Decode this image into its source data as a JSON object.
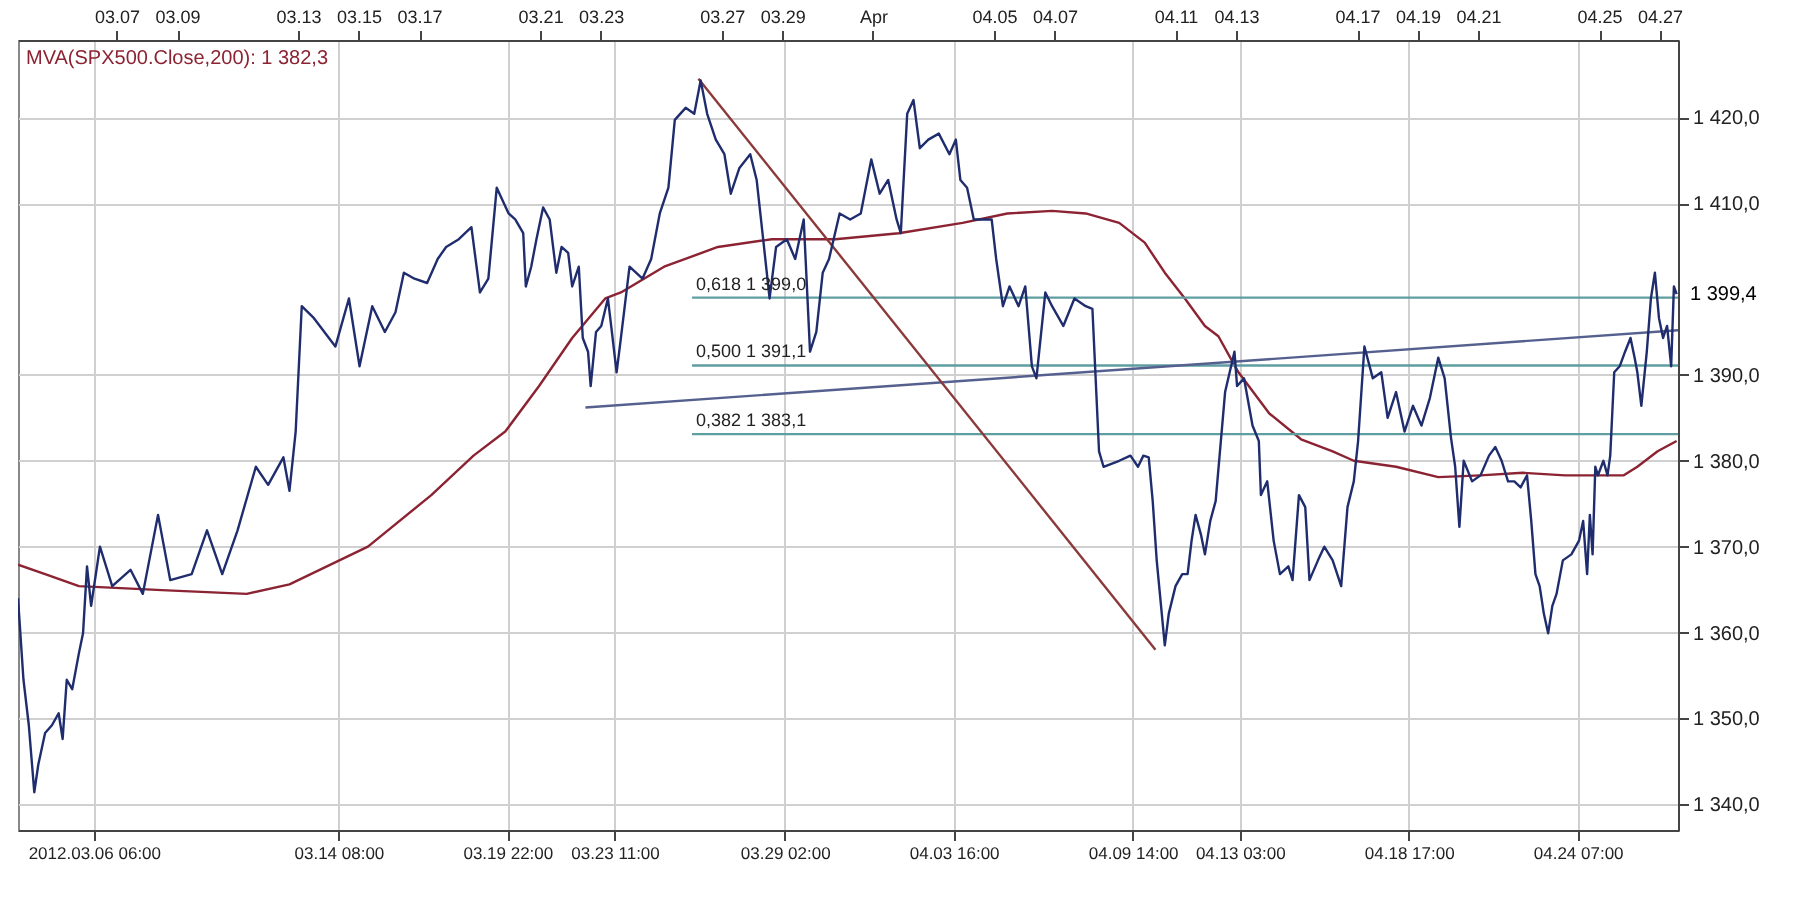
{
  "chart_data": {
    "type": "line",
    "xlim": [
      "2012-03-03T17:50",
      "2012-04-27T14:35"
    ],
    "ylim": [
      1337,
      1429
    ],
    "xticks": [
      {
        "value": "2012-03-06T06:00",
        "label": "2012.03.06 06:00"
      },
      {
        "value": "2012-03-14T08:00",
        "label": "03.14 08:00"
      },
      {
        "value": "2012-03-19T22:00",
        "label": "03.19 22:00"
      },
      {
        "value": "2012-03-23T11:00",
        "label": "03.23 11:00"
      },
      {
        "value": "2012-03-29T02:00",
        "label": "03.29 02:00"
      },
      {
        "value": "2012-04-03T16:00",
        "label": "04.03 16:00"
      },
      {
        "value": "2012-04-09T14:00",
        "label": "04.09 14:00"
      },
      {
        "value": "2012-04-13T03:00",
        "label": "04.13 03:00"
      },
      {
        "value": "2012-04-18T17:00",
        "label": "04.18 17:00"
      },
      {
        "value": "2012-04-24T07:00",
        "label": "04.24 07:00"
      }
    ],
    "x2lim": [
      "2012-03-03T17:50",
      "2012-04-27T14:35"
    ],
    "x2ticks": [
      {
        "value": "2012-03-07",
        "label": "03.07"
      },
      {
        "value": "2012-03-09",
        "label": "03.09"
      },
      {
        "value": "2012-03-13",
        "label": "03.13"
      },
      {
        "value": "2012-03-15",
        "label": "03.15"
      },
      {
        "value": "2012-03-17",
        "label": "03.17"
      },
      {
        "value": "2012-03-21",
        "label": "03.21"
      },
      {
        "value": "2012-03-23",
        "label": "03.23"
      },
      {
        "value": "2012-03-27",
        "label": "03.27"
      },
      {
        "value": "2012-03-29",
        "label": "03.29"
      },
      {
        "value": "2012-04-01",
        "label": "Apr"
      },
      {
        "value": "2012-04-05",
        "label": "04.05"
      },
      {
        "value": "2012-04-07",
        "label": "04.07"
      },
      {
        "value": "2012-04-11",
        "label": "04.11"
      },
      {
        "value": "2012-04-13",
        "label": "04.13"
      },
      {
        "value": "2012-04-17",
        "label": "04.17"
      },
      {
        "value": "2012-04-19",
        "label": "04.19"
      },
      {
        "value": "2012-04-21",
        "label": "04.21"
      },
      {
        "value": "2012-04-25",
        "label": "04.25"
      },
      {
        "value": "2012-04-27",
        "label": "04.27"
      }
    ],
    "yticks": [
      {
        "value": 1340,
        "label": "1 340,0"
      },
      {
        "value": 1350,
        "label": "1 350,0"
      },
      {
        "value": 1360,
        "label": "1 360,0"
      },
      {
        "value": 1370,
        "label": "1 370,0"
      },
      {
        "value": 1380,
        "label": "1 380,0"
      },
      {
        "value": 1390,
        "label": "1 390,0"
      },
      {
        "value": 1410,
        "label": "1 410,0"
      },
      {
        "value": 1420,
        "label": "1 420,0"
      }
    ],
    "grid": true,
    "series": [
      {
        "color": "#8b2332",
        "name": "MVA(SPX500.Close,200): 1 382,3",
        "x": [
          "2012-03-03T17:50",
          "2012-03-04T15:20",
          "2012-03-05T18:10",
          "2012-03-08T16:10",
          "2012-03-11T07:15",
          "2012-03-12T17:10",
          "2012-03-15T07:25",
          "2012-03-17T09:40",
          "2012-03-18T19:10",
          "2012-03-19T20:20",
          "2012-03-20T23:10",
          "2012-03-22T01:25",
          "2012-03-23T03:40",
          "2012-03-23T16:05",
          "2012-03-25T02:20",
          "2012-03-26T21:00",
          "2012-03-28T15:45",
          "2012-03-30T18:10",
          "2012-04-01T20:25",
          "2012-04-03T23:05",
          "2012-04-05T10:35",
          "2012-04-06T22:05",
          "2012-04-08T00:45",
          "2012-04-09T03:20",
          "2012-04-09T23:35",
          "2012-04-10T15:30",
          "2012-04-11T07:25",
          "2012-04-11T23:20",
          "2012-04-12T10:00",
          "2012-04-13T01:55",
          "2012-04-14T02:25",
          "2012-04-15T03:35",
          "2012-04-16T04:40",
          "2012-04-16T21:25",
          "2012-04-18T06:55",
          "2012-04-19T16:25",
          "2012-04-21T01:55",
          "2012-04-22T11:25",
          "2012-04-23T20:55",
          "2012-04-24T22:05",
          "2012-04-25T19:35",
          "2012-04-26T06:20",
          "2012-04-26T22:25",
          "2012-04-27T13:30"
        ],
        "values": [
          1367.9,
          1366.8,
          1365.4,
          1364.9,
          1364.5,
          1365.6,
          1370.0,
          1376.0,
          1380.6,
          1383.4,
          1388.7,
          1394.3,
          1398.9,
          1399.6,
          1402.6,
          1404.9,
          1405.8,
          1405.8,
          1406.5,
          1407.7,
          1408.8,
          1409.1,
          1408.8,
          1407.7,
          1405.4,
          1401.9,
          1398.9,
          1395.7,
          1394.5,
          1390.3,
          1385.5,
          1382.5,
          1381.1,
          1380.0,
          1379.3,
          1378.1,
          1378.3,
          1378.6,
          1378.3,
          1378.3,
          1378.3,
          1379.3,
          1381.1,
          1382.3
        ]
      },
      {
        "color": "#5f9ea0",
        "name": "0,618 1 399,0",
        "x": [
          "2012-03-26T00:30",
          "2012-04-27T14:35"
        ],
        "values": [
          1399.0,
          1399.0
        ]
      },
      {
        "color": "#5f9ea0",
        "name": "0,500 1 391,1",
        "x": [
          "2012-03-26T00:30",
          "2012-04-27T14:35"
        ],
        "values": [
          1391.1,
          1391.1
        ]
      },
      {
        "color": "#5f9ea0",
        "name": "0,382 1 383,1",
        "x": [
          "2012-03-26T00:30",
          "2012-04-27T14:35"
        ],
        "values": [
          1383.1,
          1383.1
        ]
      },
      {
        "color": "#55608f",
        "x": [
          "2012-03-22T11:55",
          "2012-04-27T14:35"
        ],
        "values": [
          1386.2,
          1395.2
        ]
      },
      {
        "color": "#8b3a3a",
        "x": [
          "2012-03-26T05:35",
          "2012-04-10T08:05"
        ],
        "values": [
          1424.5,
          1358.0
        ]
      },
      {
        "color": "#1f2d6e",
        "x": [
          "2012-03-03T17:50",
          "2012-03-03T22:10",
          "2012-03-04T02:25",
          "2012-03-04T06:45",
          "2012-03-04T09:55",
          "2012-03-04T15:20",
          "2012-03-04T20:45",
          "2012-03-05T02:05",
          "2012-03-05T05:15",
          "2012-03-05T08:30",
          "2012-03-05T12:50",
          "2012-03-05T18:10",
          "2012-03-05T21:25",
          "2012-03-06T00:35",
          "2012-03-06T03:50",
          "2012-03-06T10:50",
          "2012-03-06T20:35",
          "2012-03-07T11:05",
          "2012-03-07T20:50",
          "2012-03-08T08:55",
          "2012-03-08T18:35",
          "2012-03-09T11:35",
          "2012-03-09T23:45",
          "2012-03-10T11:50",
          "2012-03-11T00:00",
          "2012-03-11T14:30",
          "2012-03-12T00:15",
          "2012-03-12T12:20",
          "2012-03-12T17:10",
          "2012-03-12T22:05",
          "2012-03-13T02:55",
          "2012-03-13T12:35",
          "2012-03-14T05:35",
          "2012-03-14T16:20",
          "2012-03-15T00:45",
          "2012-03-15T10:50",
          "2012-03-15T20:50",
          "2012-03-16T05:15",
          "2012-03-16T11:55",
          "2012-03-16T20:20",
          "2012-03-17T06:20",
          "2012-03-17T14:45",
          "2012-03-17T21:25",
          "2012-03-18T07:30",
          "2012-03-18T17:30",
          "2012-03-19T00:15",
          "2012-03-19T06:55",
          "2012-03-19T13:35",
          "2012-03-19T23:00",
          "2012-03-20T04:15",
          "2012-03-20T10:35",
          "2012-03-20T12:40",
          "2012-03-20T16:55",
          "2012-03-20T21:05",
          "2012-03-21T02:20",
          "2012-03-21T07:35",
          "2012-03-21T12:50",
          "2012-03-21T17:00",
          "2012-03-21T22:15",
          "2012-03-22T01:25",
          "2012-03-22T06:40",
          "2012-03-22T09:50",
          "2012-03-22T14:00",
          "2012-03-22T16:05",
          "2012-03-22T20:20",
          "2012-03-23T00:30",
          "2012-03-23T05:45",
          "2012-03-23T08:55",
          "2012-03-23T12:40",
          "2012-03-23T16:05",
          "2012-03-23T22:55",
          "2012-03-24T09:10",
          "2012-03-24T16:05",
          "2012-03-24T22:55",
          "2012-03-25T05:45",
          "2012-03-25T10:50",
          "2012-03-25T19:25",
          "2012-03-26T02:15",
          "2012-03-26T07:20",
          "2012-03-26T12:30",
          "2012-03-26T19:20",
          "2012-03-27T02:10",
          "2012-03-27T07:15",
          "2012-03-27T14:05",
          "2012-03-27T22:40",
          "2012-03-28T03:45",
          "2012-03-28T08:55",
          "2012-03-28T14:00",
          "2012-03-28T19:10",
          "2012-03-29T03:40",
          "2012-03-29T10:20",
          "2012-03-29T17:05",
          "2012-03-29T22:05",
          "2012-03-30T03:05",
          "2012-03-30T08:10",
          "2012-03-30T13:10",
          "2012-03-30T21:35",
          "2012-03-31T05:55",
          "2012-03-31T14:20",
          "2012-03-31T22:40",
          "2012-04-01T05:20",
          "2012-04-01T12:05",
          "2012-04-01T18:45",
          "2012-04-01T22:05",
          "2012-04-02T03:10",
          "2012-04-02T08:10",
          "2012-04-02T13:10",
          "2012-04-02T19:55",
          "2012-04-03T04:15",
          "2012-04-03T12:40",
          "2012-04-03T17:45",
          "2012-04-03T21:20",
          "2012-04-04T02:40",
          "2012-04-04T08:00",
          "2012-04-04T15:05",
          "2012-04-04T22:10",
          "2012-04-05T01:45",
          "2012-04-05T07:05",
          "2012-04-05T12:20",
          "2012-04-05T19:30",
          "2012-04-06T00:50",
          "2012-04-06T06:05",
          "2012-04-06T09:40",
          "2012-04-06T16:45",
          "2012-04-06T22:05",
          "2012-04-07T07:00",
          "2012-04-07T15:50",
          "2012-04-08T00:45",
          "2012-04-08T06:05",
          "2012-04-08T11:20",
          "2012-04-08T14:55",
          "2012-04-09T03:20",
          "2012-04-09T12:15",
          "2012-04-09T18:15",
          "2012-04-09T22:30",
          "2012-04-10T02:45",
          "2012-04-10T05:55",
          "2012-04-10T09:05",
          "2012-04-10T15:30",
          "2012-04-10T18:40",
          "2012-04-11T00:00",
          "2012-04-11T05:20",
          "2012-04-11T09:35",
          "2012-04-11T12:45",
          "2012-04-11T15:55",
          "2012-04-11T20:10",
          "2012-04-11T23:20",
          "2012-04-12T03:35",
          "2012-04-12T07:50",
          "2012-04-12T15:20",
          "2012-04-12T22:45",
          "2012-04-13T00:50",
          "2012-04-13T06:20",
          "2012-04-13T13:05",
          "2012-04-13T18:05",
          "2012-04-13T19:45",
          "2012-04-14T00:45",
          "2012-04-14T05:50",
          "2012-04-14T10:50",
          "2012-04-14T17:30",
          "2012-04-14T20:50",
          "2012-04-15T01:55",
          "2012-04-15T06:55",
          "2012-04-15T10:15",
          "2012-04-15T17:00",
          "2012-04-15T22:00",
          "2012-04-16T04:40",
          "2012-04-16T11:25",
          "2012-04-16T16:25",
          "2012-04-16T21:25",
          "2012-04-17T00:50",
          "2012-04-17T05:50",
          "2012-04-17T12:30",
          "2012-04-17T19:15",
          "2012-04-18T00:15",
          "2012-04-18T06:55",
          "2012-04-18T13:40",
          "2012-04-18T20:20",
          "2012-04-19T03:05",
          "2012-04-19T09:45",
          "2012-04-19T16:25",
          "2012-04-19T21:30",
          "2012-04-20T02:30",
          "2012-04-20T05:50",
          "2012-04-20T09:10",
          "2012-04-20T12:35",
          "2012-04-20T19:15",
          "2012-04-21T01:55",
          "2012-04-21T08:40",
          "2012-04-21T13:40",
          "2012-04-21T18:40",
          "2012-04-21T23:45",
          "2012-04-22T04:45",
          "2012-04-22T09:45",
          "2012-04-22T14:50",
          "2012-04-22T18:10",
          "2012-04-22T21:30",
          "2012-04-23T00:50",
          "2012-04-23T04:10",
          "2012-04-23T07:35",
          "2012-04-23T10:55",
          "2012-04-23T14:15",
          "2012-04-23T19:15",
          "2012-04-24T02:00",
          "2012-04-24T08:05",
          "2012-04-24T11:20",
          "2012-04-24T14:30",
          "2012-04-24T16:40",
          "2012-04-24T18:50",
          "2012-04-24T21:00",
          "2012-04-24T23:05",
          "2012-04-25T03:25",
          "2012-04-25T06:40",
          "2012-04-25T08:50",
          "2012-04-25T12:00",
          "2012-04-25T16:20",
          "2012-04-25T20:35",
          "2012-04-26T00:55",
          "2012-04-26T04:10",
          "2012-04-26T06:20",
          "2012-04-26T09:30",
          "2012-04-26T13:50",
          "2012-04-26T17:05",
          "2012-04-26T20:15",
          "2012-04-26T23:30",
          "2012-04-27T02:45",
          "2012-04-27T05:55",
          "2012-04-27T09:10",
          "2012-04-27T11:20",
          "2012-04-27T13:30"
        ],
        "values": [
          1364.0,
          1354.5,
          1349.2,
          1341.4,
          1344.6,
          1348.3,
          1349.2,
          1350.6,
          1347.6,
          1354.5,
          1353.4,
          1357.6,
          1359.9,
          1367.7,
          1363.1,
          1370.0,
          1365.4,
          1367.3,
          1364.5,
          1373.7,
          1366.1,
          1366.8,
          1371.9,
          1366.8,
          1371.9,
          1379.3,
          1377.2,
          1380.4,
          1376.5,
          1383.4,
          1398.0,
          1396.6,
          1393.3,
          1398.9,
          1391.0,
          1398.0,
          1395.0,
          1397.3,
          1401.9,
          1401.2,
          1400.7,
          1403.5,
          1404.9,
          1405.8,
          1407.2,
          1399.6,
          1401.2,
          1411.8,
          1408.8,
          1408.1,
          1406.5,
          1400.3,
          1402.6,
          1405.8,
          1409.5,
          1408.1,
          1401.9,
          1404.9,
          1404.2,
          1400.3,
          1402.6,
          1394.3,
          1392.7,
          1388.7,
          1395.0,
          1395.7,
          1398.9,
          1395.0,
          1390.3,
          1394.3,
          1402.6,
          1401.2,
          1403.5,
          1408.8,
          1411.8,
          1419.7,
          1421.1,
          1420.4,
          1424.3,
          1420.4,
          1417.4,
          1415.7,
          1411.1,
          1414.1,
          1415.7,
          1412.7,
          1405.8,
          1398.9,
          1404.9,
          1405.8,
          1403.5,
          1408.1,
          1392.7,
          1395.0,
          1401.9,
          1403.5,
          1408.8,
          1408.1,
          1408.8,
          1415.1,
          1411.1,
          1412.7,
          1408.1,
          1406.5,
          1420.4,
          1422.0,
          1416.4,
          1417.4,
          1418.1,
          1415.7,
          1417.4,
          1412.7,
          1411.8,
          1408.1,
          1408.1,
          1408.1,
          1403.5,
          1398.0,
          1400.3,
          1398.0,
          1400.3,
          1391.0,
          1389.6,
          1399.6,
          1398.0,
          1395.7,
          1398.9,
          1398.0,
          1397.7,
          1381.1,
          1379.3,
          1380.0,
          1380.6,
          1379.3,
          1380.6,
          1380.4,
          1375.3,
          1368.4,
          1358.5,
          1362.2,
          1365.4,
          1366.8,
          1366.8,
          1370.7,
          1373.7,
          1371.4,
          1369.1,
          1373.0,
          1375.3,
          1388.0,
          1392.7,
          1388.7,
          1389.6,
          1384.1,
          1382.3,
          1376.0,
          1377.6,
          1370.7,
          1366.8,
          1367.7,
          1366.1,
          1376.0,
          1374.6,
          1366.1,
          1368.4,
          1370.0,
          1368.4,
          1365.4,
          1374.6,
          1377.6,
          1382.3,
          1393.3,
          1389.6,
          1390.3,
          1385.0,
          1388.0,
          1383.4,
          1386.4,
          1384.1,
          1387.3,
          1392.0,
          1389.6,
          1382.7,
          1379.3,
          1372.3,
          1380.0,
          1377.6,
          1378.3,
          1380.6,
          1381.6,
          1380.0,
          1377.6,
          1377.6,
          1376.9,
          1378.3,
          1373.0,
          1366.8,
          1365.4,
          1362.2,
          1359.9,
          1363.1,
          1364.5,
          1368.4,
          1369.1,
          1370.7,
          1373.0,
          1366.8,
          1373.7,
          1369.1,
          1379.3,
          1378.3,
          1380.0,
          1378.3,
          1380.6,
          1390.3,
          1391.0,
          1392.7,
          1394.3,
          1392.0,
          1390.3,
          1386.4,
          1392.7,
          1398.9,
          1401.9,
          1396.6,
          1394.3,
          1395.7,
          1391.0,
          1400.3,
          1399.4
        ]
      }
    ],
    "annotations": [
      {
        "text": "1 399,4",
        "x": "2012-04-27T14:35",
        "y": 1399.4
      }
    ]
  }
}
